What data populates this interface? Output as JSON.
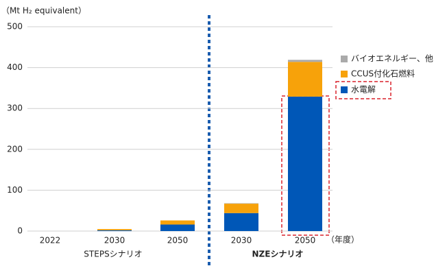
{
  "chart_data": {
    "type": "stacked_bar",
    "y_axis_label": "（Mt H₂ equivalent）",
    "x_axis_label": "（年度）",
    "categories": [
      "2022",
      "2030",
      "2050",
      "2030",
      "2050"
    ],
    "group_labels": [
      "STEPSシナリオ",
      "NZEシナリオ"
    ],
    "series": [
      {
        "name": "水電解",
        "color": "#0057b7",
        "values": [
          0,
          2,
          16,
          44,
          329
        ]
      },
      {
        "name": "CCUS付化石燃料",
        "color": "#f7a20a",
        "values": [
          0,
          3,
          10,
          23,
          85
        ]
      },
      {
        "name": "バイオエネルギー、他",
        "color": "#aaaaaa",
        "values": [
          0,
          0,
          0,
          1,
          5
        ]
      }
    ],
    "ylim": [
      0,
      500
    ],
    "yticks": [
      0,
      100,
      200,
      300,
      400,
      500
    ],
    "grid": true
  }
}
